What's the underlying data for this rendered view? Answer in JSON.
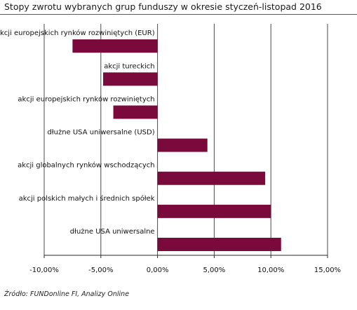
{
  "header": {
    "title": "Stopy zwrotu wybranych grup funduszy w okresie styczeń-listopad 2016"
  },
  "footer": {
    "source": "Źródło: FUNDonline FI, Analizy Online"
  },
  "colors": {
    "bar": "#7a0a3c",
    "grid": "#4a4a4a",
    "axis": "#2a2a2a",
    "text": "#111111"
  },
  "chart_data": {
    "type": "bar",
    "orientation": "horizontal",
    "title": "Stopy zwrotu wybranych grup funduszy w okresie styczeń-listopad 2016",
    "categories": [
      "akcji europejskich rynków rozwiniętych (EUR)",
      "akcji tureckich",
      "akcji europejskich rynków rozwiniętych",
      "dłużne USA uniwersalne (USD)",
      "akcji globalnych rynków wschodzących",
      "akcji polskich małych i średnich spółek",
      "dłużne USA uniwersalne"
    ],
    "values": [
      -7.5,
      -4.8,
      -3.9,
      4.4,
      9.5,
      10.0,
      10.9
    ],
    "xlim": [
      -10,
      15
    ],
    "ticks": [
      -10,
      -5,
      0,
      5,
      10,
      15
    ],
    "tick_labels": [
      "-10,00%",
      "-5,00%",
      "0,00%",
      "5,00%",
      "10,00%",
      "15,00%"
    ],
    "grid": "vertical",
    "legend": "none"
  }
}
